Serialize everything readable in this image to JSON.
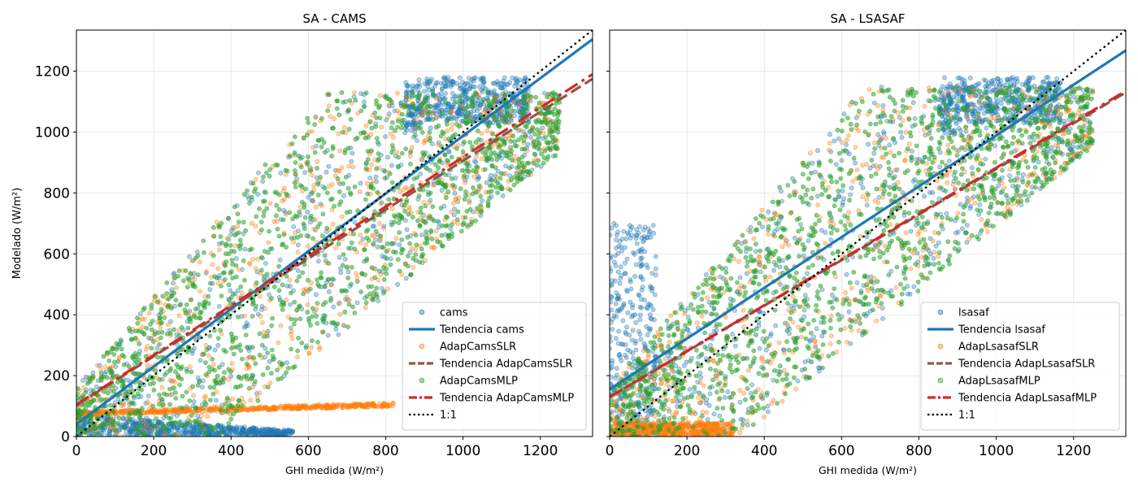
{
  "figure": {
    "shared_ylabel": "Modelado (W/m²)"
  },
  "chart_data": [
    {
      "type": "scatter",
      "title": "SA - CAMS",
      "xlabel": "GHI medida (W/m²)",
      "ylabel": "Modelado (W/m²)",
      "xlim": [
        0,
        1335
      ],
      "ylim": [
        0,
        1335
      ],
      "xticks": [
        0,
        200,
        400,
        600,
        800,
        1000,
        1200
      ],
      "yticks": [
        0,
        200,
        400,
        600,
        800,
        1000,
        1200
      ],
      "grid": true,
      "legend_position": "lower-right",
      "series": [
        {
          "name": "cams",
          "kind": "scatter",
          "color": "#1f77b4"
        },
        {
          "name": "Tendencia cams",
          "kind": "line",
          "color": "#1f77b4",
          "style": "solid",
          "x": [
            0,
            1335
          ],
          "y": [
            40,
            1305
          ]
        },
        {
          "name": "AdapCamsSLR",
          "kind": "scatter",
          "color": "#ff7f0e"
        },
        {
          "name": "Tendencia AdapCamsSLR",
          "kind": "line",
          "color": "#8c564b",
          "style": "dashed",
          "x": [
            0,
            1335
          ],
          "y": [
            103,
            1175
          ]
        },
        {
          "name": "AdapCamsMLP",
          "kind": "scatter",
          "color": "#2ca02c"
        },
        {
          "name": "Tendencia AdapCamsMLP",
          "kind": "line",
          "color": "#d62728",
          "style": "dashdot",
          "x": [
            0,
            1335
          ],
          "y": [
            105,
            1190
          ]
        },
        {
          "name": "1:1",
          "kind": "line",
          "color": "#000000",
          "style": "dotted",
          "x": [
            0,
            1335
          ],
          "y": [
            0,
            1335
          ]
        }
      ]
    },
    {
      "type": "scatter",
      "title": "SA - LSASAF",
      "xlabel": "GHI medida (W/m²)",
      "ylabel": "",
      "xlim": [
        0,
        1335
      ],
      "ylim": [
        0,
        1335
      ],
      "xticks": [
        0,
        200,
        400,
        600,
        800,
        1000,
        1200
      ],
      "yticks": [
        0,
        200,
        400,
        600,
        800,
        1000,
        1200
      ],
      "grid": true,
      "legend_position": "lower-right",
      "series": [
        {
          "name": "lsasaf",
          "kind": "scatter",
          "color": "#1f77b4"
        },
        {
          "name": "Tendencia lsasaf",
          "kind": "line",
          "color": "#1f77b4",
          "style": "solid",
          "x": [
            0,
            1335
          ],
          "y": [
            155,
            1268
          ]
        },
        {
          "name": "AdapLsasafSLR",
          "kind": "scatter",
          "color": "#ff7f0e"
        },
        {
          "name": "Tendencia AdapLsasafSLR",
          "kind": "line",
          "color": "#8c564b",
          "style": "dashed",
          "x": [
            0,
            1335
          ],
          "y": [
            130,
            1130
          ]
        },
        {
          "name": "AdapLsasafMLP",
          "kind": "scatter",
          "color": "#2ca02c"
        },
        {
          "name": "Tendencia AdapLsasafMLP",
          "kind": "line",
          "color": "#d62728",
          "style": "dashdot",
          "x": [
            0,
            1335
          ],
          "y": [
            130,
            1135
          ]
        },
        {
          "name": "1:1",
          "kind": "line",
          "color": "#000000",
          "style": "dotted",
          "x": [
            0,
            1335
          ],
          "y": [
            0,
            1335
          ]
        }
      ]
    }
  ]
}
